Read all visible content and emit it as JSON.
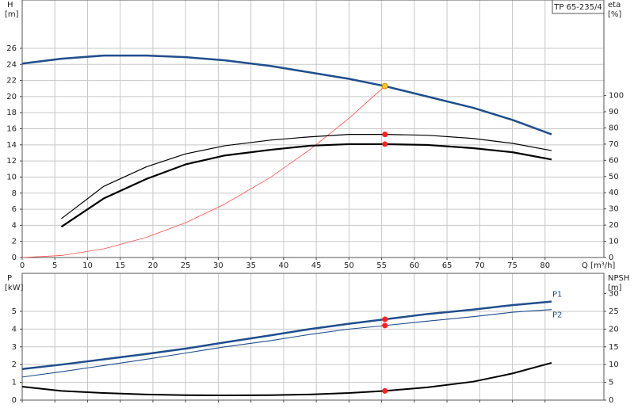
{
  "chart_data": [
    {
      "type": "line",
      "title": "TP 65-235/4",
      "x_label": "Q [m³/h]",
      "y_label": "H",
      "y_unit": "[m]",
      "y2_label": "eta",
      "y2_unit": "[%]",
      "x": [
        0,
        6,
        12.5,
        19,
        25,
        31,
        38,
        44,
        50,
        55.5,
        62,
        69,
        75,
        81
      ],
      "xlim": [
        0,
        89
      ],
      "xticks": [
        0,
        5,
        10,
        15,
        20,
        25,
        30,
        35,
        40,
        45,
        50,
        55,
        60,
        65,
        70,
        75,
        80
      ],
      "ylim": [
        0,
        32
      ],
      "yticks": [
        0,
        2,
        4,
        6,
        8,
        10,
        12,
        14,
        16,
        18,
        20,
        22,
        24,
        26
      ],
      "y2lim": [
        0,
        159
      ],
      "y2ticks": [
        0,
        10,
        20,
        30,
        40,
        50,
        60,
        70,
        80,
        90,
        100
      ],
      "grid": true,
      "x_tick_labels": true,
      "series": [
        {
          "color": "#ff4a4a",
          "width": 0.8,
          "values": [
            0,
            0.25,
            1.08,
            2.5,
            4.32,
            6.65,
            9.96,
            13.4,
            17.3,
            21.3,
            null,
            null,
            null,
            null
          ]
        },
        {
          "color": "#1f4e8c",
          "width": 2.5,
          "values": [
            24.1,
            24.7,
            25.1,
            25.1,
            24.9,
            24.5,
            23.8,
            23.0,
            22.2,
            21.3,
            20.0,
            18.6,
            17.1,
            15.3
          ],
          "marker": {
            "index": 9,
            "color": "#ffc72c"
          }
        },
        {
          "color": "#000000",
          "width": 1.2,
          "axis": "y2",
          "values": [
            null,
            24,
            44,
            56,
            64,
            69,
            72.5,
            74.5,
            76,
            76,
            75.5,
            73.5,
            70.5,
            66
          ],
          "marker": {
            "index": 9,
            "color": "#ff2020"
          }
        },
        {
          "color": "#000000",
          "width": 2.2,
          "axis": "y2",
          "values": [
            null,
            19,
            36.5,
            48.5,
            57.5,
            63,
            66.5,
            69,
            70,
            70,
            69.5,
            67.5,
            65,
            60.5
          ],
          "marker": {
            "index": 9,
            "color": "#ff2020"
          }
        }
      ]
    },
    {
      "type": "line",
      "y_label": "P",
      "y_unit": "[kW]",
      "y2_label": "NPSH",
      "y2_unit": "[m]",
      "x": [
        0,
        6,
        12.5,
        19,
        25,
        31,
        38,
        44,
        50,
        55.5,
        62,
        69,
        75,
        81
      ],
      "xlim": [
        0,
        89
      ],
      "xticks": [
        0,
        5,
        10,
        15,
        20,
        25,
        30,
        35,
        40,
        45,
        50,
        55,
        60,
        65,
        70,
        75,
        80
      ],
      "ylim": [
        0,
        7.14
      ],
      "yticks": [
        0,
        1,
        2,
        3,
        4,
        5
      ],
      "y2lim": [
        0,
        35.7
      ],
      "y2ticks": [
        0,
        5,
        10,
        15,
        20,
        25,
        30
      ],
      "grid": true,
      "x_tick_labels": false,
      "series": [
        {
          "name": "P1",
          "color": "#1f4e8c",
          "width": 2.5,
          "values": [
            1.75,
            2.0,
            2.3,
            2.6,
            2.9,
            3.25,
            3.65,
            4.0,
            4.3,
            4.55,
            4.85,
            5.1,
            5.35,
            5.55
          ],
          "marker": {
            "index": 9,
            "color": "#ff2020"
          }
        },
        {
          "name": "P2",
          "color": "#1f4e8c",
          "width": 1.1,
          "values": [
            1.3,
            1.6,
            1.95,
            2.3,
            2.65,
            3.0,
            3.35,
            3.7,
            4.0,
            4.2,
            4.45,
            4.7,
            4.95,
            5.1
          ],
          "marker": {
            "index": 9,
            "color": "#ff2020"
          }
        },
        {
          "color": "#000000",
          "width": 2,
          "axis": "y2",
          "values": [
            3.8,
            2.6,
            2.0,
            1.6,
            1.4,
            1.35,
            1.4,
            1.6,
            2.0,
            2.6,
            3.6,
            5.2,
            7.5,
            10.5
          ],
          "marker": {
            "index": 9,
            "color": "#ff2020"
          }
        }
      ]
    }
  ]
}
